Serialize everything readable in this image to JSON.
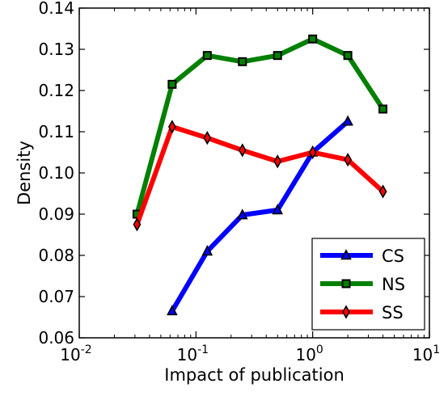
{
  "chart_data": {
    "type": "line",
    "title": "",
    "xlabel": "Impact of publication",
    "ylabel": "Density",
    "xscale": "log",
    "xlim": [
      0.01,
      10
    ],
    "ylim": [
      0.06,
      0.14
    ],
    "x_tick_labels": [
      {
        "base": "10",
        "exp": "-2",
        "value": 0.01
      },
      {
        "base": "10",
        "exp": "-1",
        "value": 0.1
      },
      {
        "base": "10",
        "exp": "0",
        "value": 1
      },
      {
        "base": "10",
        "exp": "1",
        "value": 10
      }
    ],
    "y_ticks": [
      0.06,
      0.07,
      0.08,
      0.09,
      0.1,
      0.11,
      0.12,
      0.13,
      0.14
    ],
    "y_tick_labels": [
      "0.06",
      "0.07",
      "0.08",
      "0.09",
      "0.10",
      "0.11",
      "0.12",
      "0.13",
      "0.14"
    ],
    "grid": false,
    "legend_position": "lower-right",
    "series": [
      {
        "name": "CS",
        "color": "#0000ff",
        "marker": "triangle",
        "x": [
          0.0625,
          0.125,
          0.25,
          0.5,
          1,
          2
        ],
        "y": [
          0.0665,
          0.081,
          0.0898,
          0.091,
          0.105,
          0.1125
        ]
      },
      {
        "name": "NS",
        "color": "#008000",
        "marker": "square",
        "x": [
          0.03125,
          0.0625,
          0.125,
          0.25,
          0.5,
          1,
          2,
          4
        ],
        "y": [
          0.09,
          0.1215,
          0.1285,
          0.127,
          0.1285,
          0.1325,
          0.1285,
          0.1155
        ]
      },
      {
        "name": "SS",
        "color": "#ff0000",
        "marker": "diamond",
        "x": [
          0.03125,
          0.0625,
          0.125,
          0.25,
          0.5,
          1,
          2,
          4
        ],
        "y": [
          0.0875,
          0.1112,
          0.1085,
          0.1055,
          0.1028,
          0.105,
          0.1032,
          0.0955
        ]
      }
    ]
  }
}
